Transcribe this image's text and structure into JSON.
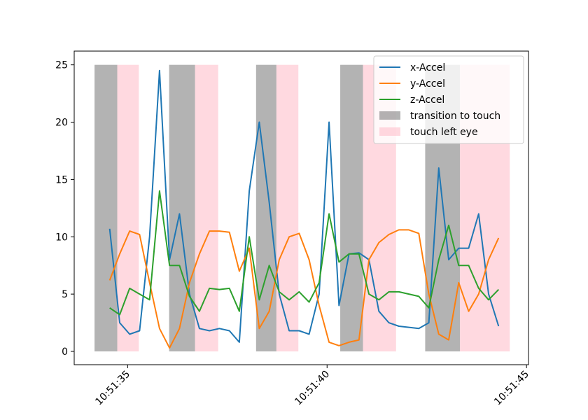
{
  "chart_data": {
    "type": "line",
    "x": [
      34.55,
      34.8,
      35.05,
      35.3,
      35.55,
      35.8,
      36.05,
      36.3,
      36.55,
      36.8,
      37.05,
      37.3,
      37.55,
      37.8,
      38.05,
      38.3,
      38.55,
      38.8,
      39.05,
      39.3,
      39.55,
      39.8,
      40.05,
      40.3,
      40.55,
      40.8,
      41.05,
      41.3,
      41.55,
      41.8,
      42.05,
      42.3,
      42.55,
      42.8,
      43.05,
      43.3,
      43.55,
      43.8,
      44.05,
      44.3
    ],
    "series": [
      {
        "name": "x-Accel",
        "color": "#1f77b4",
        "values": [
          10.7,
          2.5,
          1.5,
          1.8,
          10,
          24.5,
          8,
          12,
          5,
          2,
          1.8,
          2,
          1.8,
          0.8,
          14,
          20,
          13,
          5,
          1.8,
          1.8,
          1.5,
          5,
          20,
          4,
          8.5,
          8.6,
          8,
          3.5,
          2.5,
          2.2,
          2.1,
          2,
          2.5,
          16,
          8,
          9,
          9,
          12,
          5,
          2.2
        ]
      },
      {
        "name": "y-Accel",
        "color": "#ff7f0e",
        "values": [
          6.2,
          8.5,
          10.5,
          10.2,
          6,
          2,
          0.3,
          2,
          6,
          8.5,
          10.5,
          10.5,
          10.4,
          7,
          9,
          2,
          3.5,
          8,
          10,
          10.3,
          8,
          4,
          0.8,
          0.5,
          0.8,
          1,
          8,
          9.5,
          10.2,
          10.6,
          10.6,
          10.3,
          5,
          1.5,
          1,
          6,
          3.5,
          5,
          8,
          9.9
        ]
      },
      {
        "name": "z-Accel",
        "color": "#2ca02c",
        "values": [
          3.8,
          3.2,
          5.5,
          5,
          4.5,
          14,
          7.5,
          7.5,
          4.8,
          3.5,
          5.5,
          5.4,
          5.5,
          3.5,
          10,
          4.5,
          7.5,
          5.2,
          4.5,
          5.2,
          4.3,
          6,
          12,
          7.8,
          8.5,
          8.5,
          5,
          4.5,
          5.2,
          5.2,
          5,
          4.8,
          3.8,
          8,
          11,
          7.5,
          7.5,
          5.5,
          4.5,
          5.4
        ]
      }
    ],
    "spans": [
      {
        "name": "transition to touch",
        "color": "#808080",
        "alpha": 0.6,
        "ymin": 0,
        "ymax": 25,
        "ranges": [
          [
            34.17,
            34.74
          ],
          [
            36.04,
            36.69
          ],
          [
            38.22,
            38.73
          ],
          [
            40.33,
            40.9
          ],
          [
            42.46,
            43.33
          ]
        ]
      },
      {
        "name": "touch left eye",
        "color": "#ffc0cb",
        "alpha": 0.6,
        "ymin": 0,
        "ymax": 25,
        "ranges": [
          [
            34.74,
            35.28
          ],
          [
            36.69,
            37.27
          ],
          [
            38.73,
            39.28
          ],
          [
            40.9,
            41.73
          ],
          [
            43.33,
            44.58
          ]
        ]
      }
    ],
    "xlim": [
      33.66,
      45.05
    ],
    "xticks": [
      {
        "value": 35,
        "label": "10:51:35"
      },
      {
        "value": 40,
        "label": "10:51:40"
      },
      {
        "value": 45,
        "label": "10:51:45"
      }
    ],
    "ylim": [
      -1.16,
      26.2
    ],
    "yticks": [
      0,
      5,
      10,
      15,
      20,
      25
    ],
    "legend": "upper right"
  }
}
